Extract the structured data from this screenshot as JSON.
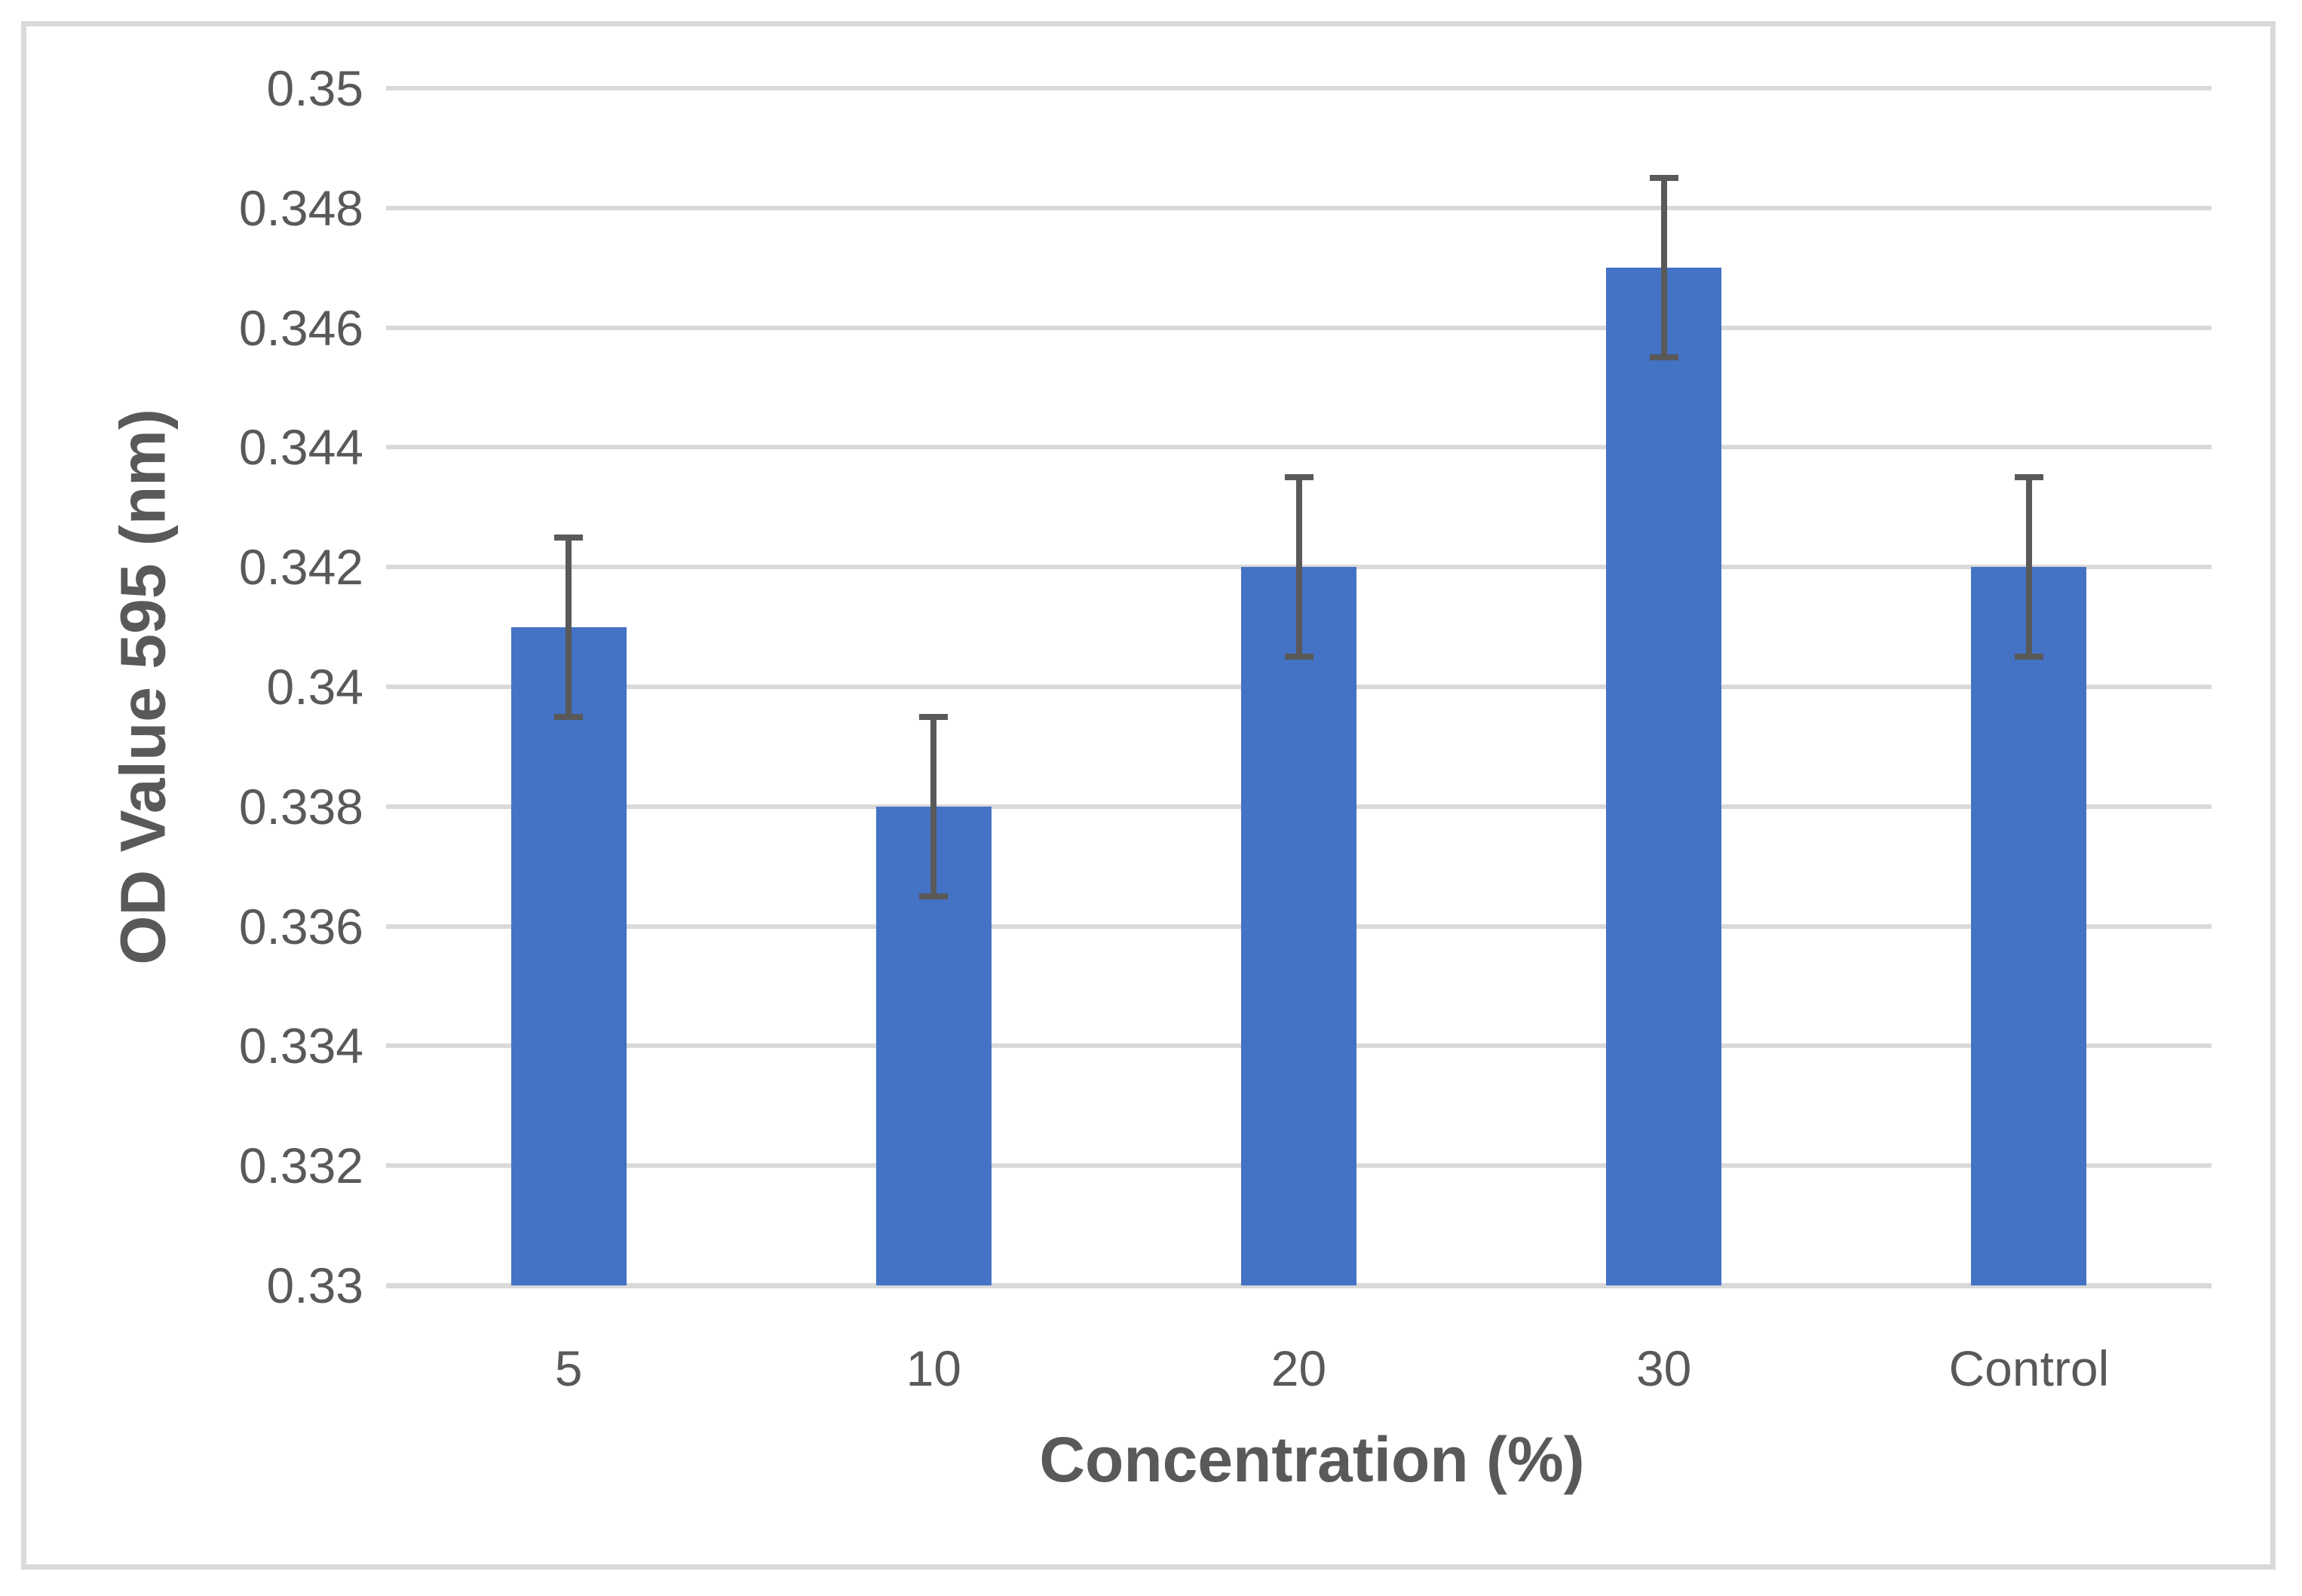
{
  "chart_data": {
    "type": "bar",
    "categories": [
      "5",
      "10",
      "20",
      "30",
      "Control"
    ],
    "values": [
      0.341,
      0.338,
      0.342,
      0.347,
      0.342
    ],
    "errors": [
      0.0015,
      0.0015,
      0.0015,
      0.0015,
      0.0015
    ],
    "xlabel": "Concentration (%)",
    "ylabel": "OD Value 595 (nm)",
    "ylim": [
      0.33,
      0.35
    ],
    "y_tick_step": 0.002,
    "y_tick_labels": [
      "0.33",
      "0.332",
      "0.334",
      "0.336",
      "0.338",
      "0.34",
      "0.342",
      "0.344",
      "0.346",
      "0.348",
      "0.35"
    ],
    "grid": "horizontal",
    "legend": "none",
    "colors": {
      "bar": "#4472C4",
      "error_bar": "#595959",
      "gridline": "#D9D9D9",
      "axis_line": "#D9D9D9",
      "text": "#595959",
      "border": "#D9D9D9",
      "background": "#FFFFFF"
    }
  }
}
